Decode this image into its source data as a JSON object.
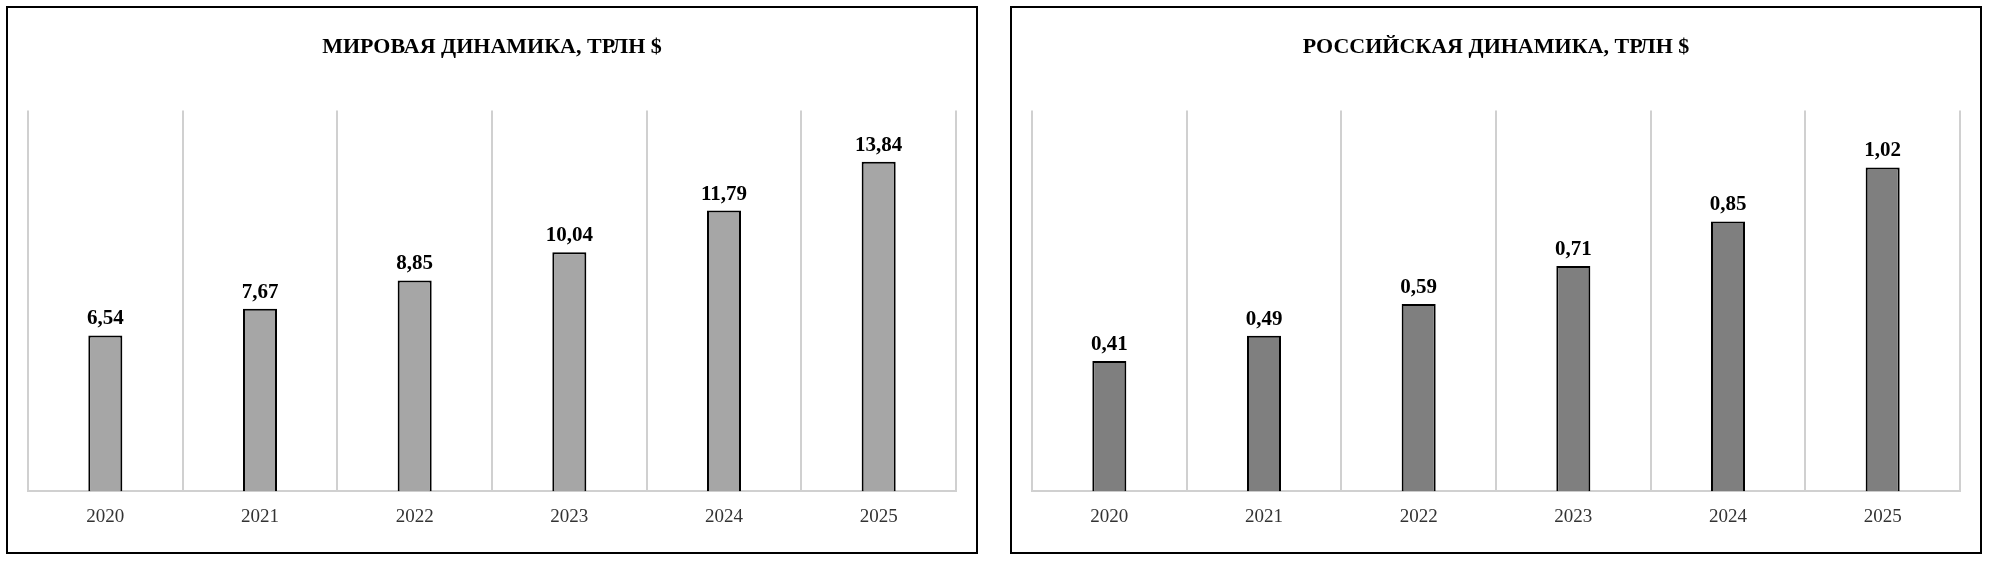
{
  "chart_data": [
    {
      "type": "bar",
      "title": "МИРОВАЯ ДИНАМИКА, ТРЛН $",
      "categories": [
        "2020",
        "2021",
        "2022",
        "2023",
        "2024",
        "2025"
      ],
      "values": [
        6.54,
        7.67,
        8.85,
        10.04,
        11.79,
        13.84
      ],
      "value_labels": [
        "6,54",
        "7,67",
        "8,85",
        "10,04",
        "11,79",
        "13,84"
      ],
      "color": "#a6a6a6",
      "grid": "x",
      "tick_labels": "x"
    },
    {
      "type": "bar",
      "title": "РОССИЙСКАЯ ДИНАМИКА, ТРЛН $",
      "categories": [
        "2020",
        "2021",
        "2022",
        "2023",
        "2024",
        "2025"
      ],
      "values": [
        0.41,
        0.49,
        0.59,
        0.71,
        0.85,
        1.02
      ],
      "value_labels": [
        "0,41",
        "0,49",
        "0,59",
        "0,71",
        "0,85",
        "1,02"
      ],
      "color": "#7f7f7f",
      "grid": "x",
      "tick_labels": "x"
    }
  ]
}
